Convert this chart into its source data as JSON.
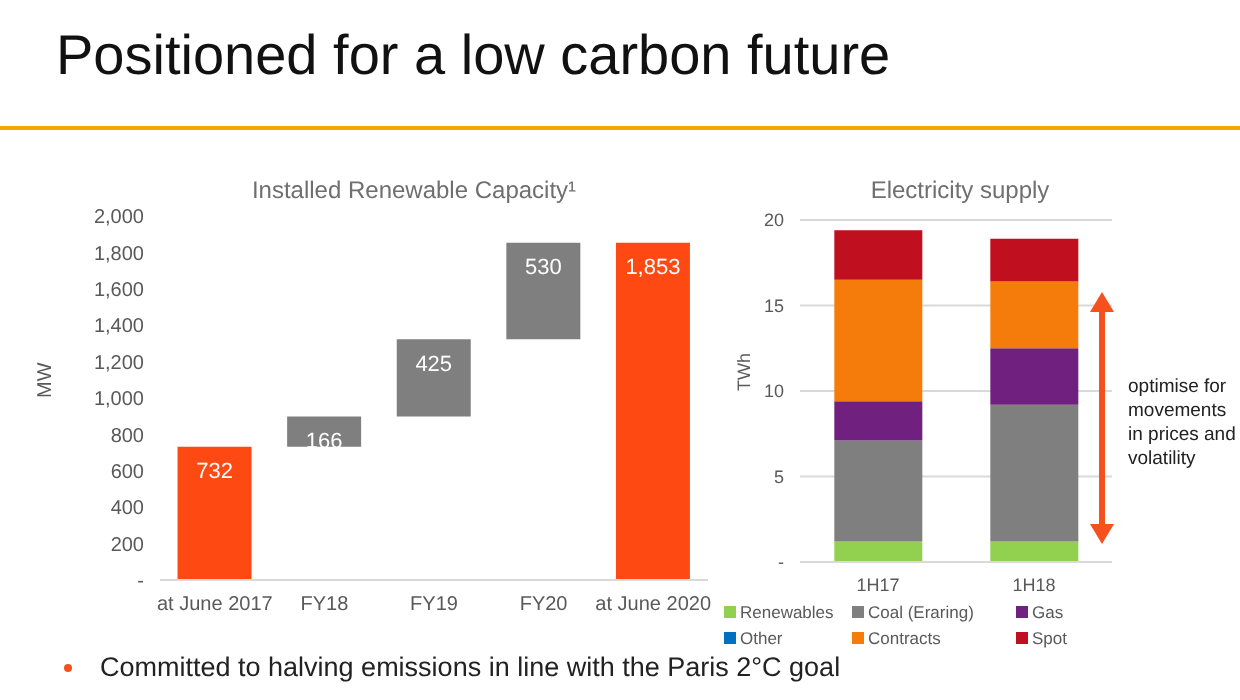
{
  "chart_data": [
    {
      "type": "bar",
      "title": "Positioned for a low carbon future",
      "subtitle": "Installed Renewable Capacity¹",
      "ylabel": "MW",
      "categories": [
        "at June 2017",
        "FY18",
        "FY19",
        "FY20",
        "at June 2020"
      ],
      "values": [
        732,
        166,
        425,
        530,
        1853
      ],
      "base": [
        0,
        732,
        898,
        1323,
        0
      ],
      "colors": [
        "#fe4a12",
        "#7f7f7f",
        "#7f7f7f",
        "#7f7f7f",
        "#fe4a12"
      ],
      "ylim": [
        0,
        2000
      ],
      "yticks": [
        {
          "value": 0,
          "label": "-"
        },
        200,
        400,
        600,
        800,
        {
          "value": 1000,
          "label": "1,000"
        },
        {
          "value": 1200,
          "label": "1,200"
        },
        {
          "value": 1400,
          "label": "1,400"
        },
        {
          "value": 1600,
          "label": "1,600"
        },
        {
          "value": 1800,
          "label": "1,800"
        },
        {
          "value": 2000,
          "label": "2,000"
        }
      ],
      "data_labels": true,
      "value_labels": [
        "732",
        "166",
        "425",
        "530",
        "1,853"
      ],
      "grid": false,
      "legend": false,
      "annotations": [
        "Committed to halving emissions in line with the Paris 2°C goal"
      ]
    },
    {
      "type": "bar",
      "title": "Electricity supply",
      "ylabel": "TWh",
      "stacked": true,
      "categories": [
        "1H17",
        "1H18"
      ],
      "series": [
        {
          "name": "Renewables",
          "color": "#92d050",
          "values": [
            1.2,
            1.2
          ]
        },
        {
          "name": "Coal (Eraring)",
          "color": "#7f7f7f",
          "values": [
            5.9,
            8.0
          ]
        },
        {
          "name": "Gas",
          "color": "#70207e",
          "values": [
            2.3,
            3.3
          ]
        },
        {
          "name": "Other",
          "color": "#0070c0",
          "values": [
            0,
            0
          ]
        },
        {
          "name": "Contracts",
          "color": "#f57c0a",
          "values": [
            7.1,
            3.9
          ]
        },
        {
          "name": "Spot",
          "color": "#c00f1e",
          "values": [
            2.9,
            2.5
          ]
        }
      ],
      "ylim": [
        0,
        20
      ],
      "yticks": [
        {
          "value": 0,
          "label": "-"
        },
        5,
        10,
        15,
        20
      ],
      "grid": "y",
      "legend": "bottom",
      "annotations": [
        "optimise for movements in prices and volatility"
      ]
    }
  ]
}
